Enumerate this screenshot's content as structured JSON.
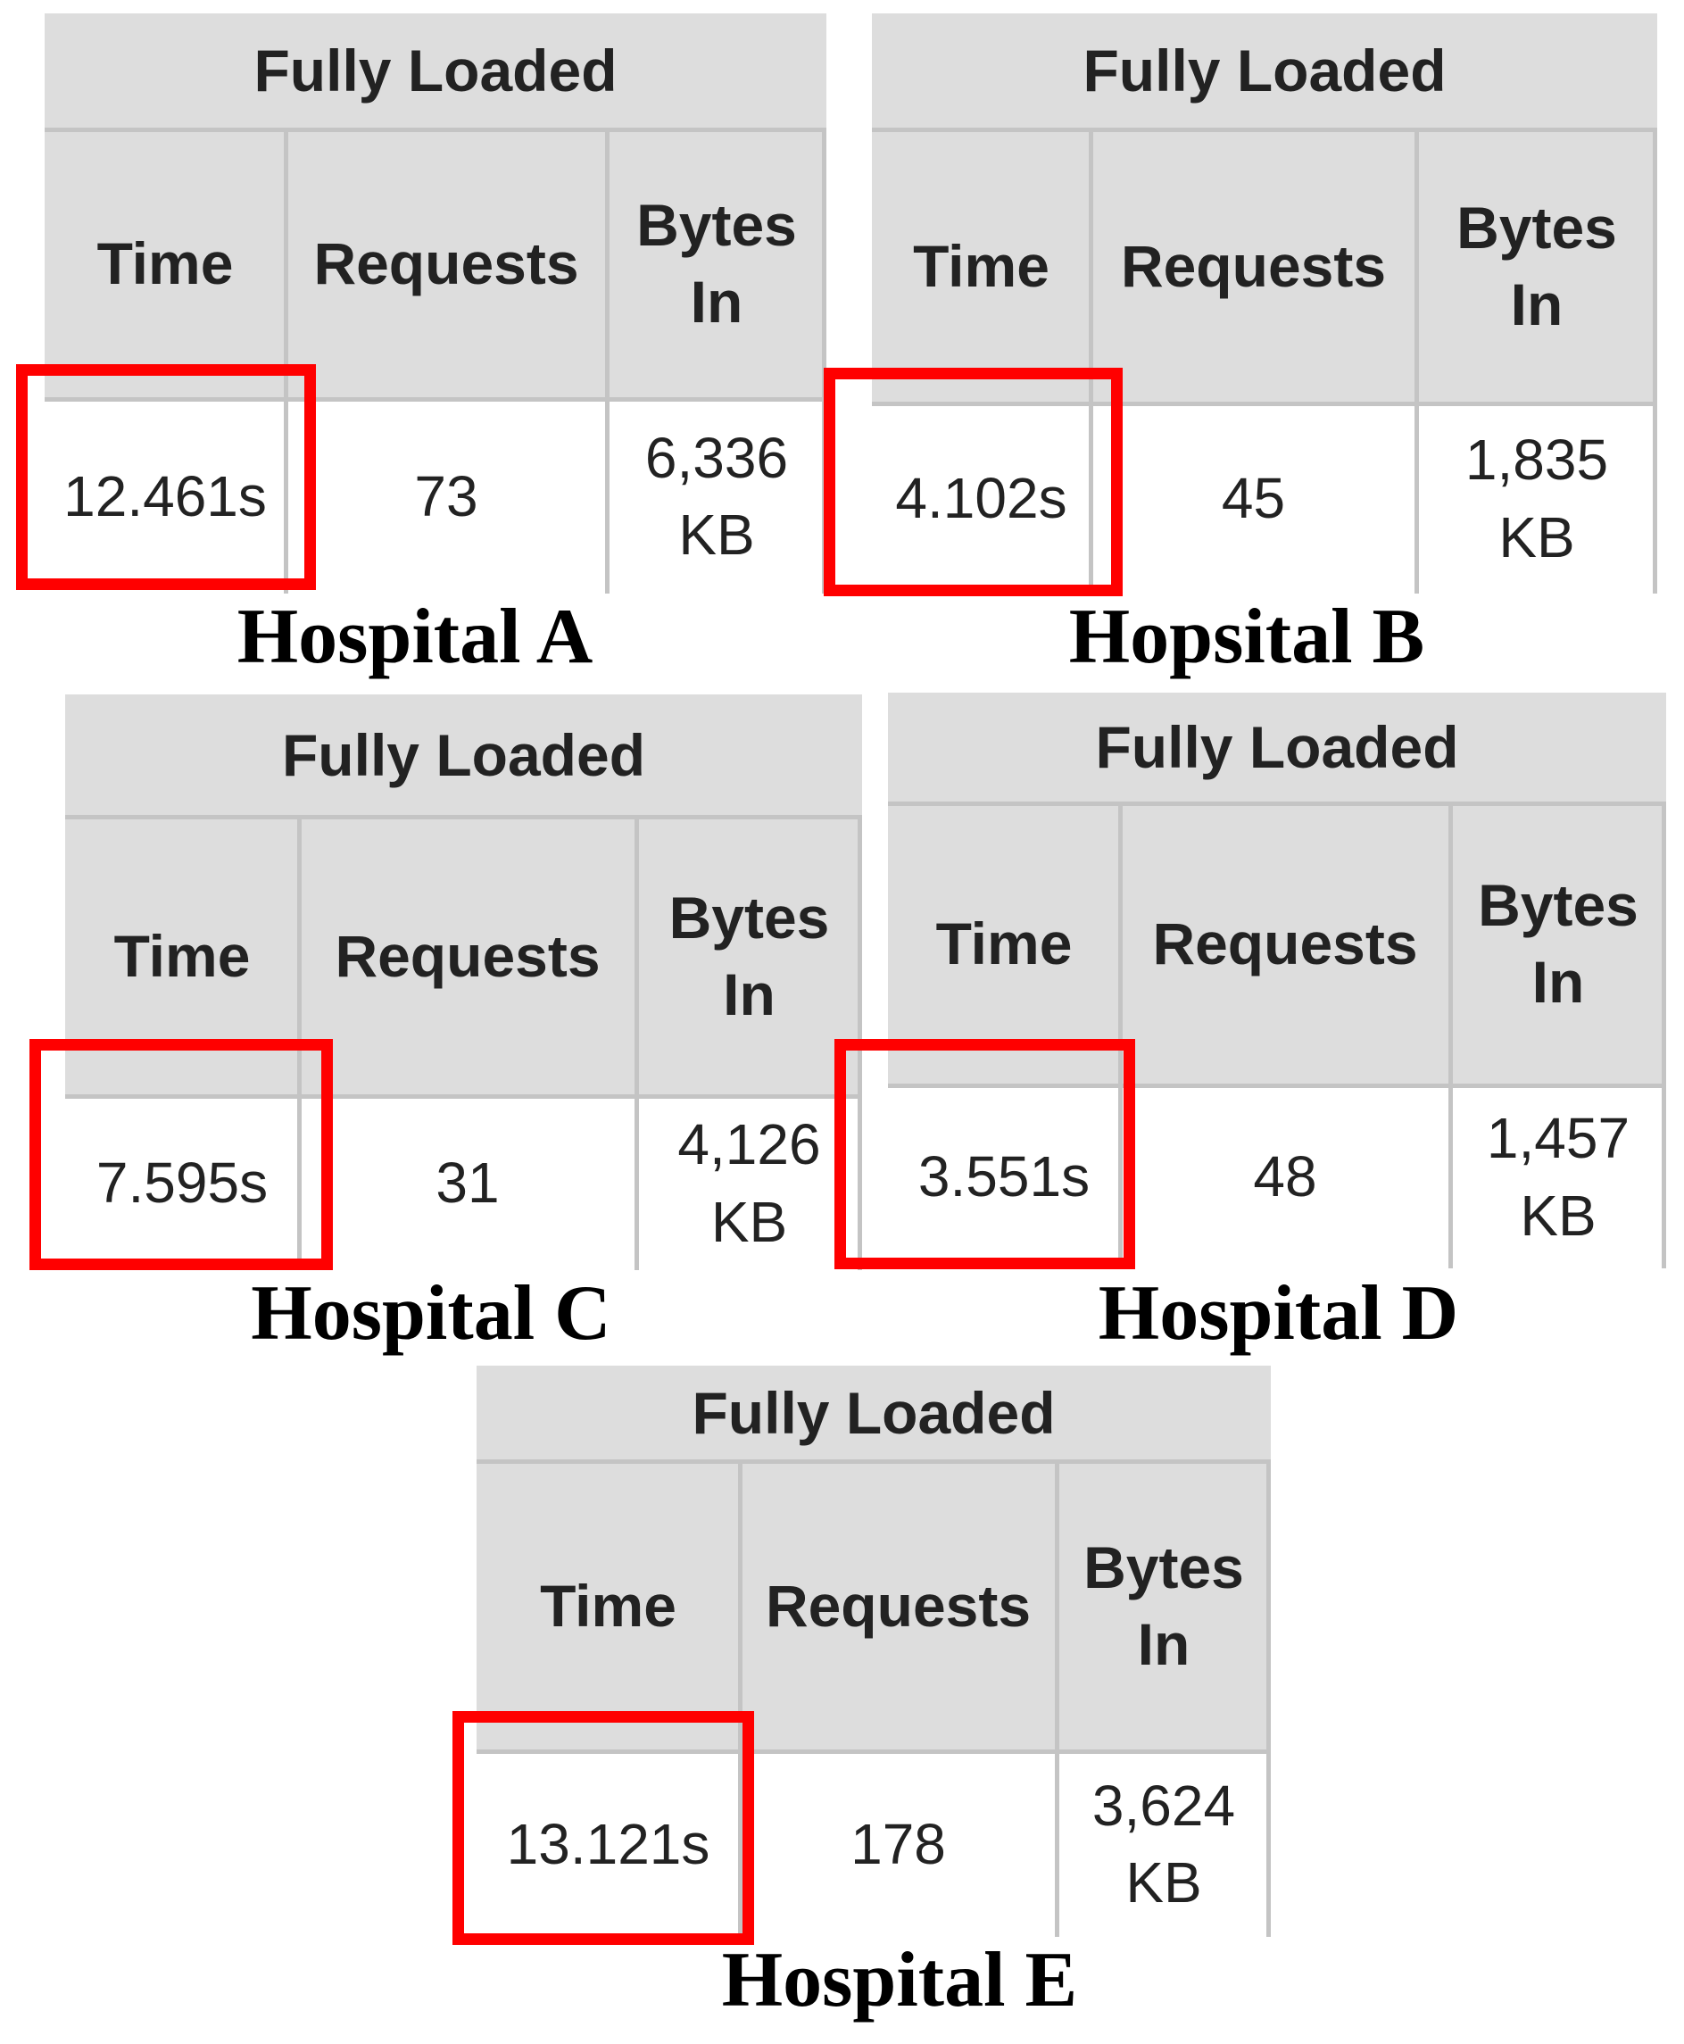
{
  "highlight_color": "#ff0000",
  "panels": [
    {
      "caption": "Hospital A",
      "table": {
        "group_header": "Fully Loaded",
        "headers": [
          "Time",
          "Requests",
          "Bytes In"
        ],
        "time": "12.461s",
        "requests": "73",
        "bytes_in": "6,336 KB"
      }
    },
    {
      "caption": "Hopsital B",
      "table": {
        "group_header": "Fully Loaded",
        "headers": [
          "Time",
          "Requests",
          "Bytes In"
        ],
        "time": "4.102s",
        "requests": "45",
        "bytes_in": "1,835 KB"
      }
    },
    {
      "caption": "Hospital C",
      "table": {
        "group_header": "Fully Loaded",
        "headers": [
          "Time",
          "Requests",
          "Bytes In"
        ],
        "time": "7.595s",
        "requests": "31",
        "bytes_in": "4,126 KB"
      }
    },
    {
      "caption": "Hospital D",
      "table": {
        "group_header": "Fully Loaded",
        "headers": [
          "Time",
          "Requests",
          "Bytes In"
        ],
        "time": "3.551s",
        "requests": "48",
        "bytes_in": "1,457 KB"
      }
    },
    {
      "caption": "Hospital E",
      "table": {
        "group_header": "Fully Loaded",
        "headers": [
          "Time",
          "Requests",
          "Bytes In"
        ],
        "time": "13.121s",
        "requests": "178",
        "bytes_in": "3,624 KB"
      }
    }
  ]
}
